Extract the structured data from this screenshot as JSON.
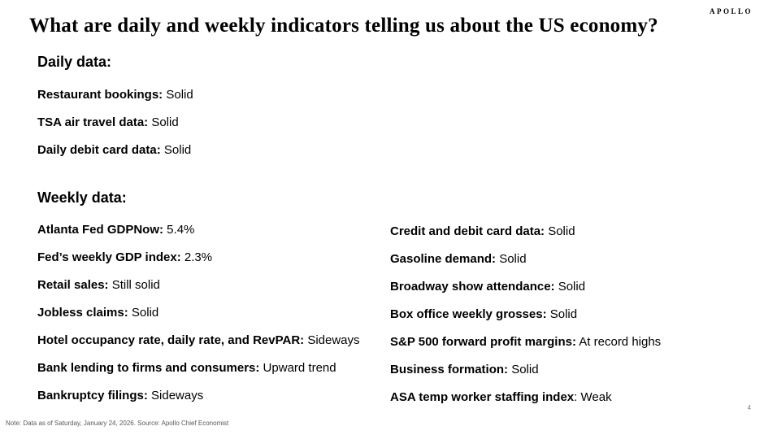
{
  "brand": {
    "logo": "APOLLO"
  },
  "page": {
    "title": "What are daily and weekly indicators telling us about the US economy?",
    "footnote": "Note: Data as of Saturday, January 24, 2026. Source: Apollo Chief Economist",
    "number": "4"
  },
  "daily": {
    "heading": "Daily data:",
    "items": [
      {
        "label": "Restaurant bookings:",
        "value": " Solid"
      },
      {
        "label": "TSA air travel data:",
        "value": " Solid"
      },
      {
        "label": "Daily debit card data:",
        "value": " Solid"
      }
    ]
  },
  "weekly": {
    "heading": "Weekly data:",
    "left_items": [
      {
        "label": "Atlanta Fed GDPNow:",
        "value": " 5.4%"
      },
      {
        "label": "Fed’s weekly GDP index:",
        "value": " 2.3%"
      },
      {
        "label": "Retail sales:",
        "value": " Still solid"
      },
      {
        "label": "Jobless claims:",
        "value": " Solid"
      },
      {
        "label": "Hotel occupancy rate, daily rate, and RevPAR:",
        "value": " Sideways"
      },
      {
        "label": "Bank lending to firms and consumers:",
        "value": " Upward trend"
      },
      {
        "label": "Bankruptcy filings:",
        "value": " Sideways"
      }
    ],
    "right_items": [
      {
        "label": "Credit and debit card data:",
        "value": " Solid"
      },
      {
        "label": "Gasoline demand:",
        "value": " Solid"
      },
      {
        "label": "Broadway show attendance:",
        "value": " Solid"
      },
      {
        "label": "Box office weekly grosses:",
        "value": " Solid"
      },
      {
        "label": "S&P 500 forward profit margins:",
        "value": " At record highs"
      },
      {
        "label": "Business formation:",
        "value": " Solid"
      },
      {
        "label": "ASA temp worker staffing index",
        "value": ": Weak"
      }
    ]
  },
  "colors": {
    "text": "#000000",
    "muted_text": "#595959",
    "background": "#ffffff"
  }
}
